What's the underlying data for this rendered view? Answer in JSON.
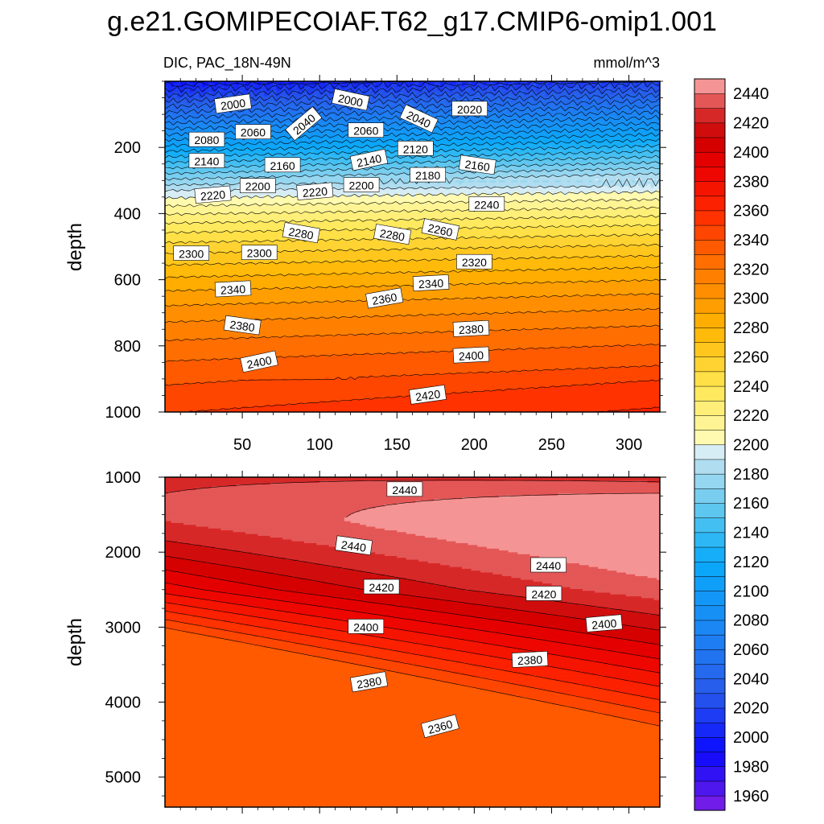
{
  "chart_data": {
    "type": "heatmap",
    "title": "g.e21.GOMIPECOIAF.T62_g17.CMIP6-omip1.001",
    "subtitle_left": "DIC, PAC_18N-49N",
    "units": "mmol/m^3",
    "colorbar": {
      "levels": [
        1950,
        1960,
        1970,
        1980,
        1990,
        2000,
        2010,
        2020,
        2030,
        2040,
        2050,
        2060,
        2070,
        2080,
        2090,
        2100,
        2110,
        2120,
        2130,
        2140,
        2150,
        2160,
        2170,
        2180,
        2190,
        2200,
        2210,
        2220,
        2230,
        2240,
        2250,
        2260,
        2270,
        2280,
        2290,
        2300,
        2310,
        2320,
        2330,
        2340,
        2350,
        2360,
        2370,
        2380,
        2390,
        2400,
        2410,
        2420,
        2430,
        2440,
        2450
      ],
      "labels": [
        "1960",
        "1980",
        "2000",
        "2020",
        "2040",
        "2060",
        "2080",
        "2100",
        "2120",
        "2140",
        "2160",
        "2180",
        "2200",
        "2220",
        "2240",
        "2260",
        "2280",
        "2300",
        "2320",
        "2340",
        "2360",
        "2380",
        "2400",
        "2420",
        "2440"
      ],
      "label_values": [
        1960,
        1980,
        2000,
        2020,
        2040,
        2060,
        2080,
        2100,
        2120,
        2140,
        2160,
        2180,
        2200,
        2220,
        2240,
        2260,
        2280,
        2300,
        2320,
        2340,
        2360,
        2380,
        2400,
        2420,
        2440
      ]
    },
    "panels": [
      {
        "name": "upper",
        "ylabel": "depth",
        "xlim": [
          0,
          320
        ],
        "ylim": [
          1000,
          0
        ],
        "xticks": [
          50,
          100,
          150,
          200,
          250,
          300
        ],
        "xtick_labels": [
          "50",
          "100",
          "150",
          "200",
          "250",
          "300"
        ],
        "yticks": [
          200,
          400,
          600,
          800,
          1000
        ],
        "ytick_labels": [
          "200",
          "400",
          "600",
          "800",
          "1000"
        ],
        "contour_labels": [
          {
            "text": "2000",
            "x": 44,
            "y": 70,
            "rot": -8
          },
          {
            "text": "2000",
            "x": 120,
            "y": 58,
            "rot": 12
          },
          {
            "text": "2020",
            "x": 197,
            "y": 85,
            "rot": 0
          },
          {
            "text": "2040",
            "x": 90,
            "y": 130,
            "rot": -40
          },
          {
            "text": "2040",
            "x": 164,
            "y": 115,
            "rot": 25
          },
          {
            "text": "2060",
            "x": 57,
            "y": 155,
            "rot": 0
          },
          {
            "text": "2060",
            "x": 130,
            "y": 150,
            "rot": 0
          },
          {
            "text": "2080",
            "x": 27,
            "y": 178,
            "rot": 0
          },
          {
            "text": "2120",
            "x": 162,
            "y": 205,
            "rot": 0
          },
          {
            "text": "2140",
            "x": 27,
            "y": 242,
            "rot": 0
          },
          {
            "text": "2140",
            "x": 132,
            "y": 240,
            "rot": -12
          },
          {
            "text": "2160",
            "x": 76,
            "y": 255,
            "rot": 0
          },
          {
            "text": "2160",
            "x": 202,
            "y": 255,
            "rot": 8
          },
          {
            "text": "2180",
            "x": 170,
            "y": 285,
            "rot": 0
          },
          {
            "text": "2200",
            "x": 60,
            "y": 318,
            "rot": 0
          },
          {
            "text": "2200",
            "x": 127,
            "y": 315,
            "rot": 0
          },
          {
            "text": "2220",
            "x": 31,
            "y": 345,
            "rot": -5
          },
          {
            "text": "2220",
            "x": 97,
            "y": 335,
            "rot": -5
          },
          {
            "text": "2240",
            "x": 208,
            "y": 373,
            "rot": 0
          },
          {
            "text": "2260",
            "x": 178,
            "y": 450,
            "rot": 12
          },
          {
            "text": "2280",
            "x": 88,
            "y": 460,
            "rot": 10
          },
          {
            "text": "2280",
            "x": 147,
            "y": 465,
            "rot": 10
          },
          {
            "text": "2300",
            "x": 17,
            "y": 522,
            "rot": 0
          },
          {
            "text": "2300",
            "x": 61,
            "y": 520,
            "rot": 0
          },
          {
            "text": "2320",
            "x": 200,
            "y": 548,
            "rot": 0
          },
          {
            "text": "2340",
            "x": 44,
            "y": 630,
            "rot": -3
          },
          {
            "text": "2340",
            "x": 172,
            "y": 612,
            "rot": -3
          },
          {
            "text": "2360",
            "x": 142,
            "y": 658,
            "rot": -10
          },
          {
            "text": "2380",
            "x": 50,
            "y": 740,
            "rot": 8
          },
          {
            "text": "2380",
            "x": 198,
            "y": 750,
            "rot": -3
          },
          {
            "text": "2400",
            "x": 61,
            "y": 850,
            "rot": -12
          },
          {
            "text": "2400",
            "x": 198,
            "y": 830,
            "rot": -3
          },
          {
            "text": "2420",
            "x": 170,
            "y": 950,
            "rot": -8
          }
        ]
      },
      {
        "name": "lower",
        "ylabel": "depth",
        "xlim": [
          0,
          320
        ],
        "ylim": [
          5400,
          1000
        ],
        "yticks": [
          1000,
          2000,
          3000,
          4000,
          5000
        ],
        "ytick_labels": [
          "1000",
          "2000",
          "3000",
          "4000",
          "5000"
        ],
        "contour_labels": [
          {
            "text": "2440",
            "x": 155,
            "y": 1170,
            "rot": 0
          },
          {
            "text": "2440",
            "x": 122,
            "y": 1920,
            "rot": 8
          },
          {
            "text": "2440",
            "x": 248,
            "y": 2180,
            "rot": 0
          },
          {
            "text": "2420",
            "x": 140,
            "y": 2470,
            "rot": 0
          },
          {
            "text": "2420",
            "x": 245,
            "y": 2560,
            "rot": 0
          },
          {
            "text": "2400",
            "x": 130,
            "y": 3000,
            "rot": 0
          },
          {
            "text": "2400",
            "x": 284,
            "y": 2960,
            "rot": -5
          },
          {
            "text": "2380",
            "x": 132,
            "y": 3740,
            "rot": -10
          },
          {
            "text": "2380",
            "x": 236,
            "y": 3440,
            "rot": -3
          },
          {
            "text": "2360",
            "x": 178,
            "y": 4330,
            "rot": -15
          }
        ]
      }
    ]
  }
}
